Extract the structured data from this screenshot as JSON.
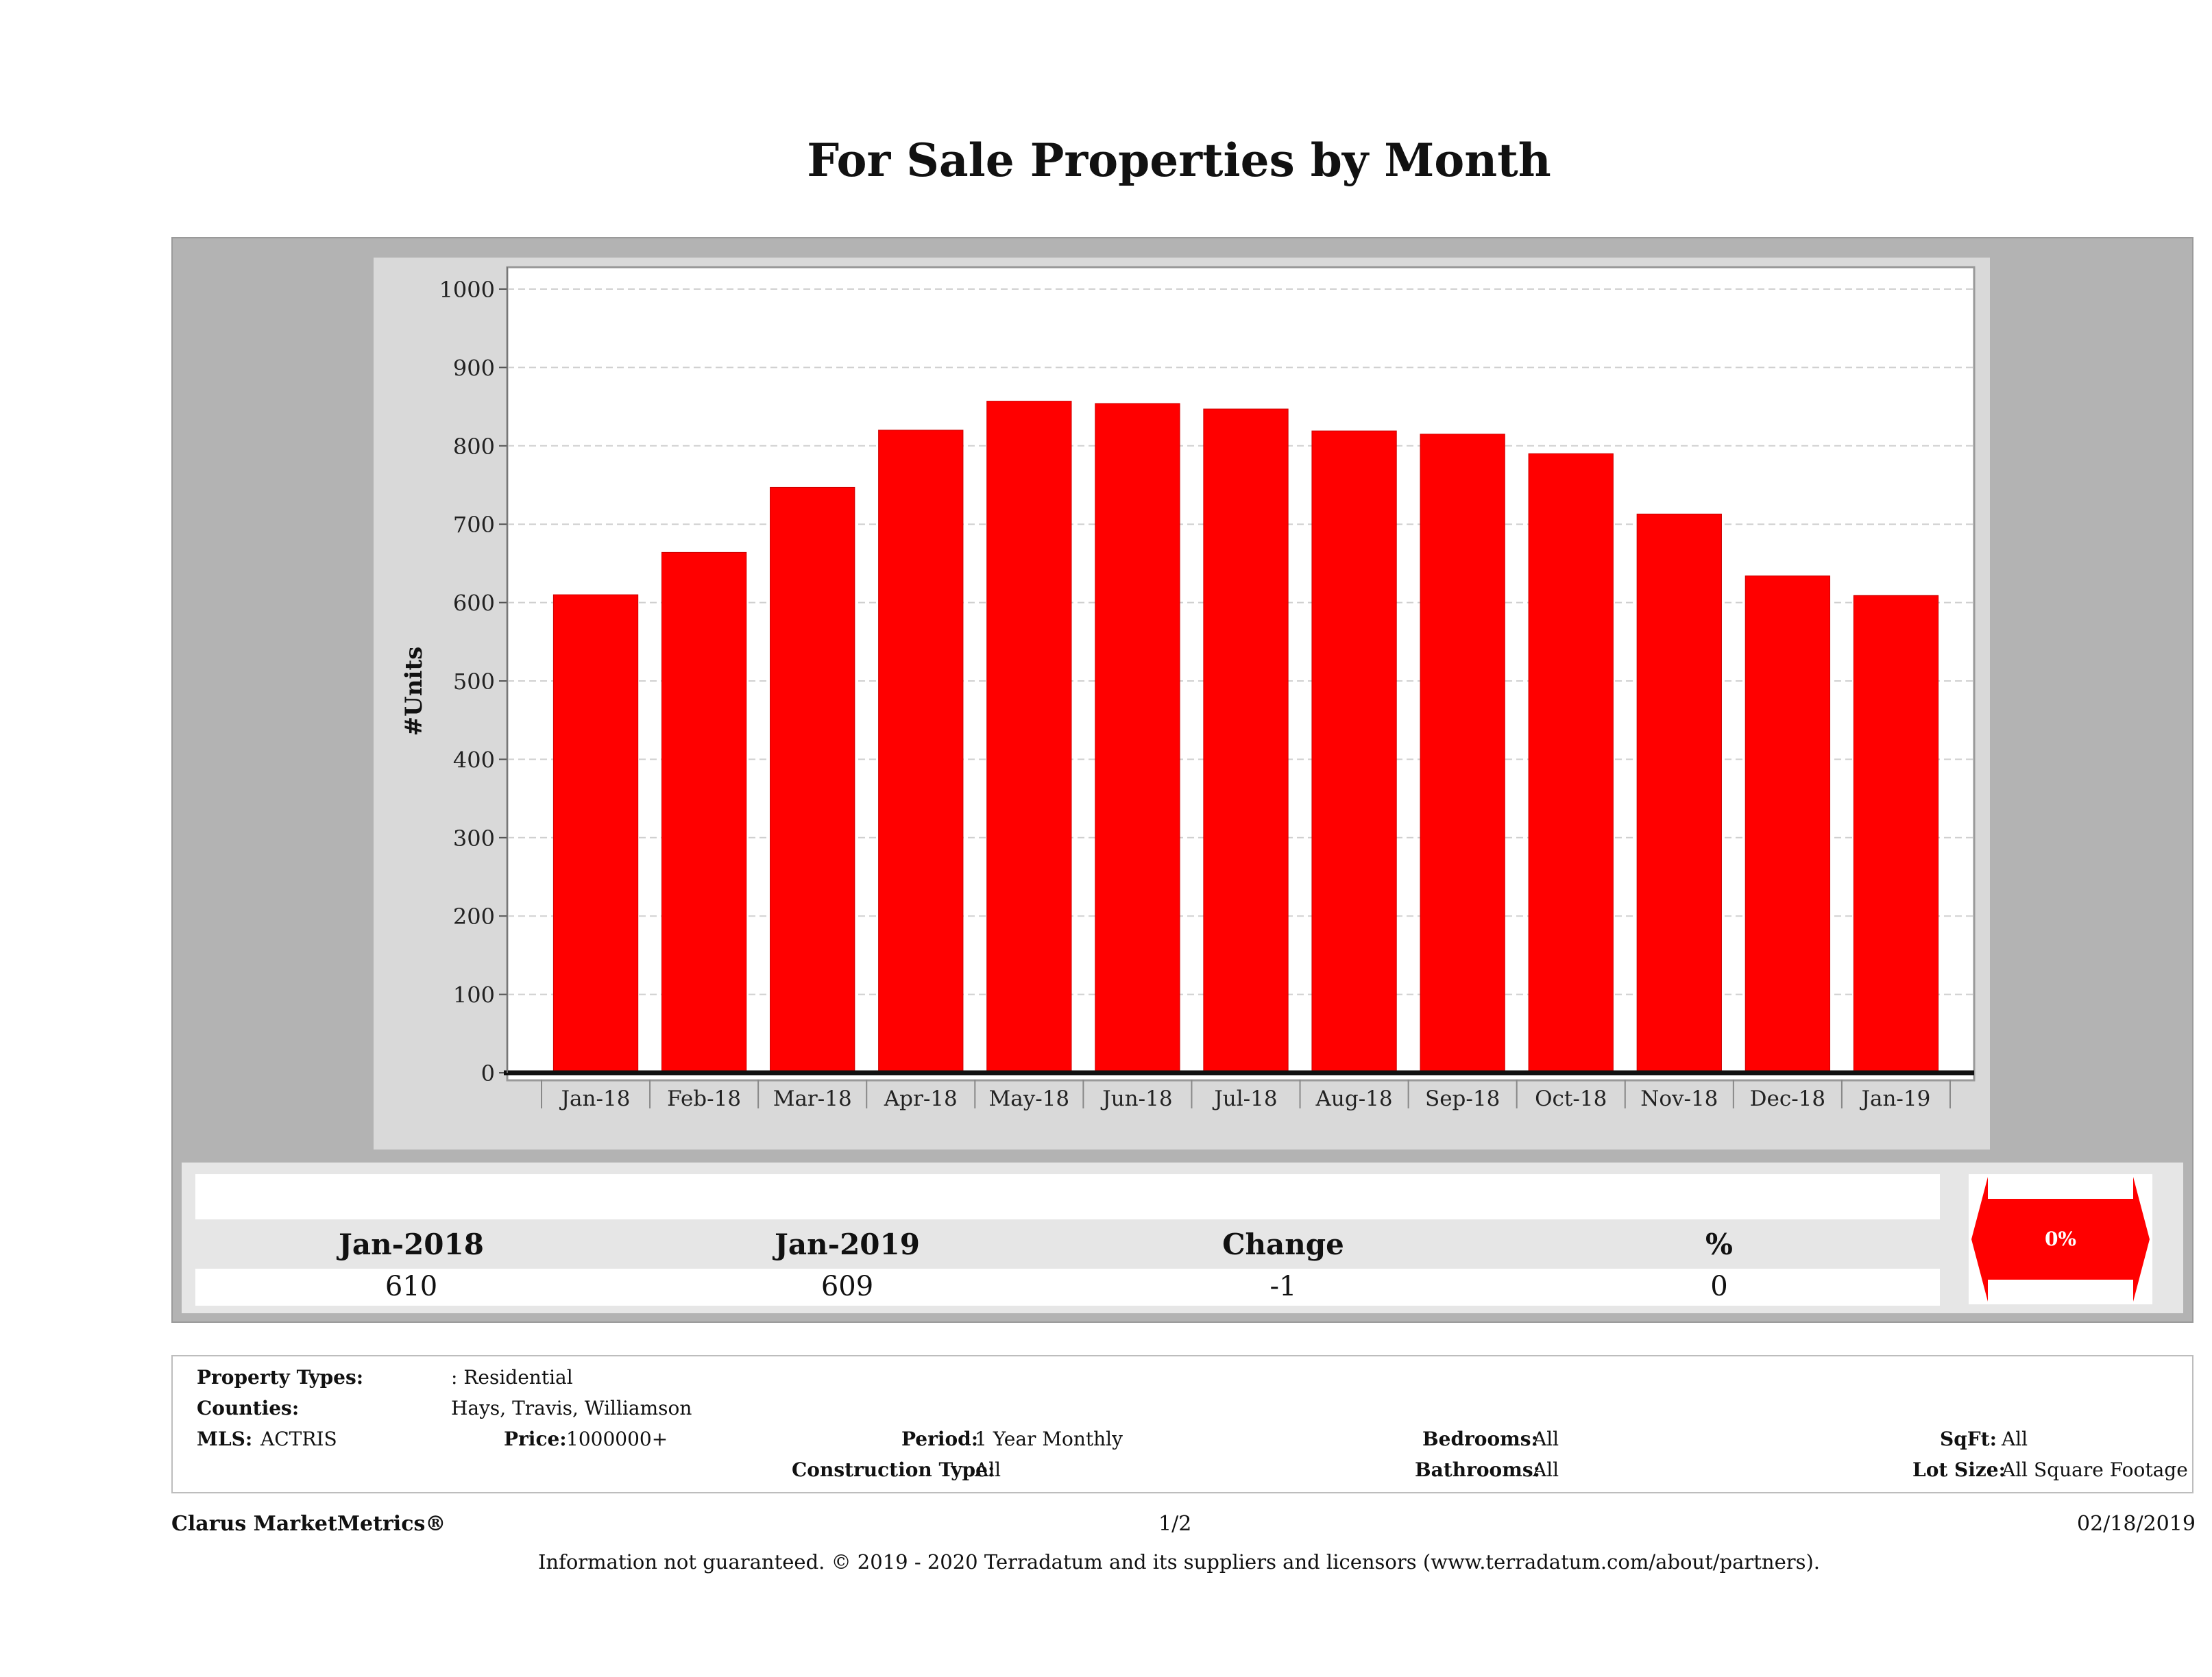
{
  "title": "For Sale Properties by Month",
  "chart_data": {
    "type": "bar",
    "title": "For Sale Properties by Month",
    "ylabel": "#Units",
    "xlabel": "",
    "ylim": [
      0,
      1000
    ],
    "yticks": [
      0,
      100,
      200,
      300,
      400,
      500,
      600,
      700,
      800,
      900,
      1000
    ],
    "grid": true,
    "categories": [
      "Jan-18",
      "Feb-18",
      "Mar-18",
      "Apr-18",
      "May-18",
      "Jun-18",
      "Jul-18",
      "Aug-18",
      "Sep-18",
      "Oct-18",
      "Nov-18",
      "Dec-18",
      "Jan-19"
    ],
    "values": [
      610,
      664,
      747,
      820,
      857,
      854,
      847,
      819,
      815,
      790,
      713,
      634,
      609
    ],
    "bar_color": "#ff0000"
  },
  "summary": {
    "col1_label": "Jan-2018",
    "col1_value": "610",
    "col2_label": "Jan-2019",
    "col2_value": "609",
    "col3_label": "Change",
    "col3_value": "-1",
    "col4_label": "%",
    "col4_value": "0",
    "arrow_label": "0%",
    "arrow_color": "#ff0000"
  },
  "criteria": {
    "property_types_label": "Property Types:",
    "property_types_value": ": Residential",
    "counties_label": "Counties:",
    "counties_value": "Hays, Travis, Williamson",
    "mls_label": "MLS:",
    "mls_value": "ACTRIS",
    "price_label": "Price:",
    "price_value": "1000000+",
    "period_label": "Period:",
    "period_value": "1 Year Monthly",
    "construction_label": "Construction Type:",
    "construction_value": "All",
    "bedrooms_label": "Bedrooms:",
    "bedrooms_value": "All",
    "bathrooms_label": "Bathrooms:",
    "bathrooms_value": "All",
    "sqft_label": "SqFt:",
    "sqft_value": "All",
    "lotsize_label": "Lot Size:",
    "lotsize_value": "All Square Footage"
  },
  "footer": {
    "brand": "Clarus MarketMetrics®",
    "page": "1/2",
    "date": "02/18/2019",
    "disclaimer": "Information not guaranteed. © 2019 - 2020 Terradatum and its suppliers and licensors (www.terradatum.com/about/partners)."
  }
}
